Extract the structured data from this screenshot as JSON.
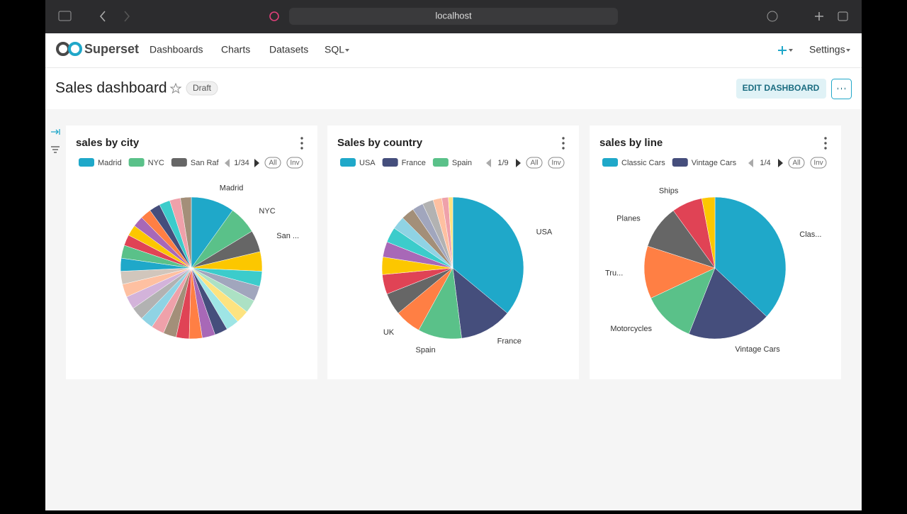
{
  "browser": {
    "url": "localhost"
  },
  "nav": {
    "brand": "Superset",
    "items": [
      "Dashboards",
      "Charts",
      "Datasets",
      "SQL"
    ],
    "settings": "Settings"
  },
  "header": {
    "title": "Sales dashboard",
    "status": "Draft",
    "edit_button": "EDIT DASHBOARD"
  },
  "chart_data": [
    {
      "type": "pie",
      "title": "sales by city",
      "categories": [
        "Madrid",
        "NYC",
        "San Rafa",
        null,
        null,
        null,
        null,
        null,
        null,
        null,
        null,
        null,
        null,
        null,
        null,
        null,
        null,
        null,
        null,
        null,
        null,
        null,
        null,
        null,
        null,
        null,
        null,
        null,
        null,
        null
      ],
      "slice_labels": [
        "Madrid",
        "NYC",
        "San ...",
        null,
        null,
        null,
        null,
        null,
        null,
        null,
        null,
        null,
        null,
        null,
        null,
        null,
        null,
        null,
        null,
        null,
        null,
        null,
        null,
        null,
        null,
        null,
        null,
        null,
        null,
        null
      ],
      "values": [
        10,
        6.5,
        5,
        4.5,
        3.5,
        3.5,
        3,
        3,
        3,
        3,
        3,
        3,
        3,
        3,
        3,
        3,
        3,
        3,
        3,
        3,
        3,
        3,
        2.5,
        2.5,
        2.5,
        2.5,
        2.5,
        2.5,
        2.5,
        2.5
      ],
      "colors": [
        "#1FA8C9",
        "#5AC189",
        "#666666",
        "#FCC700",
        "#3CCCCB",
        "#A1A6BD",
        "#ACE1C4",
        "#FDE380",
        "#9EE5E5",
        "#454E7C",
        "#A868B7",
        "#FF7F44",
        "#E04355",
        "#A38F79",
        "#EFA1AA",
        "#8FD3E4",
        "#B2B2B2",
        "#D3B3DA",
        "#FEC0A1",
        "#D1C6BC",
        "#1FA8C9",
        "#5AC189",
        "#E04355",
        "#FCC700",
        "#A868B7",
        "#FF7F44",
        "#454E7C",
        "#3CCCCB",
        "#EFA1AA",
        "#A38F79"
      ],
      "legend_page": "1/34",
      "legend_buttons": [
        "All",
        "Inv"
      ]
    },
    {
      "type": "pie",
      "title": "Sales by country",
      "categories": [
        "USA",
        "France",
        "Spain",
        null,
        null,
        null,
        null,
        null,
        null,
        null,
        null,
        null,
        null,
        null,
        null,
        null
      ],
      "slice_labels": [
        "USA",
        "France",
        "Spain",
        "UK",
        null,
        null,
        null,
        null,
        null,
        null,
        null,
        null,
        null,
        null,
        null,
        null
      ],
      "values": [
        36,
        12,
        10,
        6,
        5,
        4.5,
        4,
        3.5,
        3.5,
        3,
        3,
        2.5,
        2.5,
        2,
        1.5,
        1
      ],
      "colors": [
        "#1FA8C9",
        "#454E7C",
        "#5AC189",
        "#FF7F44",
        "#666666",
        "#E04355",
        "#FCC700",
        "#A868B7",
        "#3CCCCB",
        "#8FD3E4",
        "#A38F79",
        "#A1A6BD",
        "#B2B2B2",
        "#FEC0A1",
        "#EFA1AA",
        "#FDE380"
      ],
      "legend_page": "1/9",
      "legend_buttons": [
        "All",
        "Inv"
      ]
    },
    {
      "type": "pie",
      "title": "sales by line",
      "categories": [
        "Classic Cars",
        "Vintage Cars",
        null,
        null,
        null,
        null,
        null
      ],
      "slice_labels": [
        "Clas...",
        "Vintage Cars",
        "Motorcycles",
        "Tru...",
        "Planes",
        "Ships",
        null
      ],
      "values": [
        37,
        19,
        12,
        12,
        10,
        7,
        3
      ],
      "colors": [
        "#1FA8C9",
        "#454E7C",
        "#5AC189",
        "#FF7F44",
        "#666666",
        "#E04355",
        "#FCC700"
      ],
      "legend_page": "1/4",
      "legend_buttons": [
        "All",
        "Inv"
      ]
    }
  ]
}
